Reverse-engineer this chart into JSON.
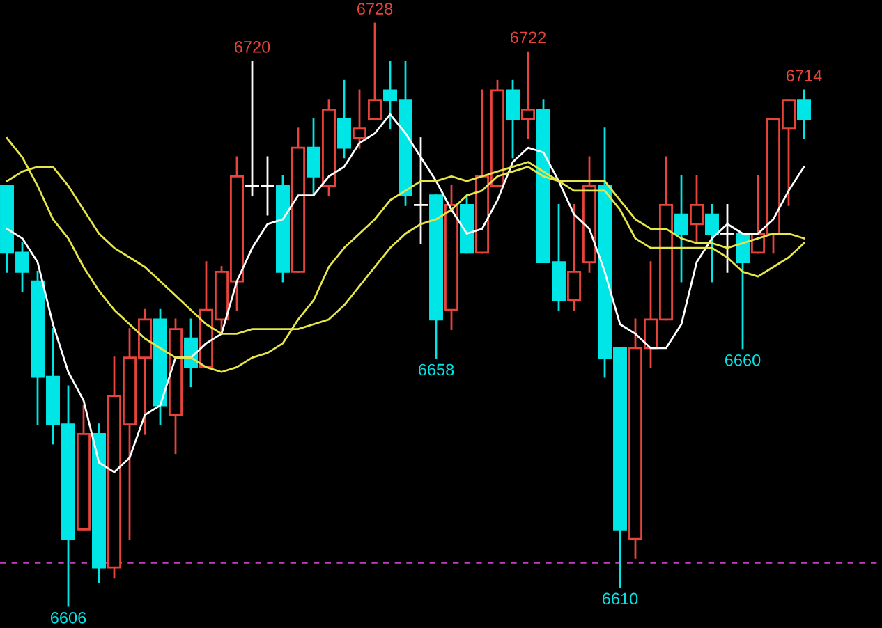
{
  "chart_data": {
    "type": "candlestick",
    "categories": [
      null,
      null,
      null,
      null,
      null,
      null,
      null,
      null,
      null,
      null,
      null,
      null,
      null,
      null,
      null,
      null,
      null,
      null,
      null,
      null,
      null,
      null,
      null,
      null,
      null,
      null,
      null,
      null,
      null,
      null,
      null,
      null,
      null,
      null,
      null,
      null,
      null,
      null,
      null,
      null,
      null,
      null,
      null,
      null,
      null,
      null,
      null,
      null,
      null,
      null,
      null,
      null,
      null
    ],
    "ohlc": [
      [
        6694,
        6694,
        6676,
        6680
      ],
      [
        6680,
        6682,
        6672,
        6676
      ],
      [
        6674,
        6676,
        6644,
        6654
      ],
      [
        6654,
        6664,
        6640,
        6644
      ],
      [
        6644,
        6652,
        6606,
        6620
      ],
      [
        6622,
        6648,
        6622,
        6642
      ],
      [
        6642,
        6644,
        6611,
        6614
      ],
      [
        6614,
        6658,
        6612,
        6650
      ],
      [
        6644,
        6664,
        6620,
        6658
      ],
      [
        6658,
        6668,
        6642,
        6666
      ],
      [
        6666,
        6668,
        6644,
        6648
      ],
      [
        6646,
        6666,
        6638,
        6664
      ],
      [
        6662,
        6666,
        6652,
        6656
      ],
      [
        6656,
        6678,
        6656,
        6668
      ],
      [
        6666,
        6677,
        6663,
        6676
      ],
      [
        6674,
        6700,
        6668,
        6696
      ],
      [
        6694,
        6720,
        6692,
        6694
      ],
      [
        6694,
        6700,
        6688,
        6694
      ],
      [
        6694,
        6696,
        6674,
        6676
      ],
      [
        6676,
        6706,
        6676,
        6702
      ],
      [
        6702,
        6708,
        6692,
        6696
      ],
      [
        6694,
        6712,
        6692,
        6710
      ],
      [
        6708,
        6716,
        6700,
        6702
      ],
      [
        6704,
        6714,
        6702,
        6706
      ],
      [
        6708,
        6728,
        6708,
        6712
      ],
      [
        6714,
        6720,
        6706,
        6712
      ],
      [
        6712,
        6720,
        6690,
        6692
      ],
      [
        6690,
        6704,
        6682,
        6690
      ],
      [
        6692,
        6692,
        6658,
        6666
      ],
      [
        6668,
        6694,
        6664,
        6690
      ],
      [
        6690,
        6692,
        6680,
        6680
      ],
      [
        6680,
        6714,
        6680,
        6696
      ],
      [
        6694,
        6716,
        6694,
        6714
      ],
      [
        6714,
        6716,
        6700,
        6708
      ],
      [
        6708,
        6722,
        6704,
        6710
      ],
      [
        6710,
        6712,
        6678,
        6678
      ],
      [
        6678,
        6690,
        6668,
        6670
      ],
      [
        6670,
        6690,
        6668,
        6676
      ],
      [
        6678,
        6700,
        6676,
        6694
      ],
      [
        6694,
        6706,
        6654,
        6658
      ],
      [
        6660,
        6660,
        6610,
        6622
      ],
      [
        6620,
        6666,
        6616,
        6660
      ],
      [
        6660,
        6678,
        6656,
        6666
      ],
      [
        6666,
        6700,
        6666,
        6690
      ],
      [
        6688,
        6696,
        6674,
        6684
      ],
      [
        6686,
        6696,
        6682,
        6690
      ],
      [
        6688,
        6690,
        6674,
        6684
      ],
      [
        6684,
        6690,
        6676,
        6684
      ],
      [
        6684,
        6684,
        6660,
        6678
      ],
      [
        6680,
        6696,
        6680,
        6684
      ],
      [
        6684,
        6708,
        6680,
        6708
      ],
      [
        6706,
        6712,
        6690,
        6712
      ],
      [
        6712,
        6714,
        6704,
        6708
      ]
    ],
    "colors": [
      "#00e6e6",
      "#00e6e6",
      "#00e6e6",
      "#00e6e6",
      "#00e6e6",
      "#e8443c",
      "#00e6e6",
      "#e8443c",
      "#e8443c",
      "#e8443c",
      "#00e6e6",
      "#e8443c",
      "#00e6e6",
      "#e8443c",
      "#e8443c",
      "#e8443c",
      "#ffffff",
      "#ffffff",
      "#00e6e6",
      "#e8443c",
      "#00e6e6",
      "#e8443c",
      "#00e6e6",
      "#e8443c",
      "#e8443c",
      "#00e6e6",
      "#00e6e6",
      "#ffffff",
      "#00e6e6",
      "#e8443c",
      "#00e6e6",
      "#e8443c",
      "#e8443c",
      "#00e6e6",
      "#e8443c",
      "#00e6e6",
      "#00e6e6",
      "#e8443c",
      "#e8443c",
      "#00e6e6",
      "#00e6e6",
      "#e8443c",
      "#e8443c",
      "#e8443c",
      "#00e6e6",
      "#e8443c",
      "#00e6e6",
      "#ffffff",
      "#00e6e6",
      "#e8443c",
      "#e8443c",
      "#e8443c",
      "#00e6e6"
    ],
    "series": [
      {
        "type": "line",
        "color": "#ffffff",
        "values": [
          6685,
          6683,
          6678,
          6665,
          6655,
          6649,
          6636,
          6634,
          6637,
          6646,
          6648,
          6658,
          6658,
          6661,
          6663,
          6674,
          6681,
          6686,
          6687,
          6692,
          6692,
          6696,
          6698,
          6703,
          6705,
          6709,
          6705,
          6700,
          6695,
          6689,
          6684,
          6685,
          6691,
          6699,
          6702,
          6701,
          6695,
          6688,
          6685,
          6676,
          6665,
          6663,
          6660,
          6660,
          6665,
          6678,
          6683,
          6686,
          6684,
          6684,
          6687,
          6693,
          6698
        ]
      },
      {
        "type": "line",
        "color": "#e6e64a",
        "values": [
          6704,
          6700,
          6694,
          6687,
          6683,
          6677,
          6672,
          6668,
          6665,
          6662,
          6660,
          6658,
          6658,
          6656,
          6655,
          6656,
          6658,
          6659,
          6661,
          6666,
          6670,
          6677,
          6681,
          6684,
          6687,
          6691,
          6693,
          6695,
          6695,
          6696,
          6695,
          6696,
          6697,
          6698,
          6699,
          6697,
          6695,
          6693,
          6693,
          6693,
          6689,
          6683,
          6681,
          6681,
          6681,
          6681,
          6681,
          6679,
          6676,
          6675,
          6677,
          6679,
          6682
        ]
      },
      {
        "type": "line",
        "color": "#e6e64a",
        "values": [
          6695,
          6697,
          6698,
          6698,
          6694,
          6689,
          6684,
          6681,
          6679,
          6677,
          6674,
          6671,
          6668,
          6665,
          6663,
          6663,
          6664,
          6664,
          6664,
          6664,
          6665,
          6666,
          6669,
          6673,
          6677,
          6681,
          6684,
          6686,
          6687,
          6689,
          6692,
          6693,
          6696,
          6697,
          6698,
          6696,
          6695,
          6695,
          6695,
          6695,
          6691,
          6687,
          6685,
          6685,
          6683,
          6682,
          6682,
          6681,
          6682,
          6683,
          6684,
          6684,
          6683
        ]
      }
    ],
    "ref_lines": [
      {
        "axis": "y",
        "value": 6615,
        "color": "#c040c0",
        "line_style": "dashed"
      }
    ],
    "annotations": [
      {
        "text": "6606",
        "y": 6606
      },
      {
        "text": "6720",
        "y": 6720
      },
      {
        "text": "6728",
        "y": 6728
      },
      {
        "text": "6658",
        "y": 6658
      },
      {
        "text": "6722",
        "y": 6722
      },
      {
        "text": "6610",
        "y": 6610
      },
      {
        "text": "6660",
        "y": 6660
      },
      {
        "text": "6714",
        "y": 6714
      }
    ]
  }
}
